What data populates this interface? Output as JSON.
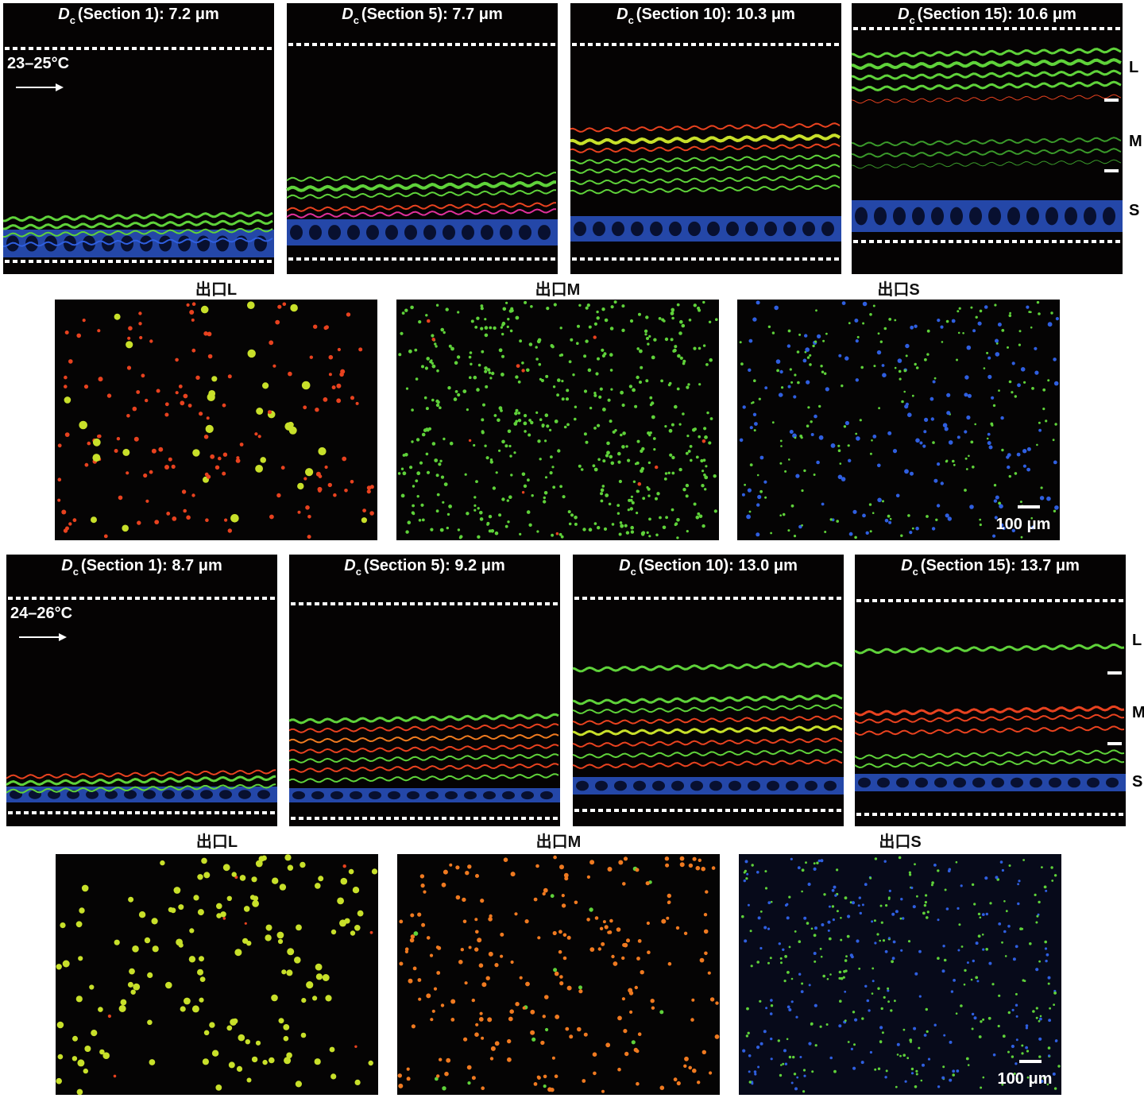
{
  "panels": [
    {
      "temperature": "23–25°C",
      "channels": [
        {
          "symbol": "D",
          "subscript": "c",
          "label": "(Section 1): 7.2 μm"
        },
        {
          "symbol": "D",
          "subscript": "c",
          "label": "(Section 5): 7.7 μm"
        },
        {
          "symbol": "D",
          "subscript": "c",
          "label": "(Section 10): 10.3 μm"
        },
        {
          "symbol": "D",
          "subscript": "c",
          "label": "(Section 15): 10.6 μm"
        }
      ],
      "lanes": [
        "L",
        "M",
        "S"
      ],
      "outlets": [
        "出口L",
        "出口M",
        "出口S"
      ],
      "scale_bar": "100 μm"
    },
    {
      "temperature": "24–26°C",
      "channels": [
        {
          "symbol": "D",
          "subscript": "c",
          "label": "(Section 1): 8.7 μm"
        },
        {
          "symbol": "D",
          "subscript": "c",
          "label": "(Section 5): 9.2 μm"
        },
        {
          "symbol": "D",
          "subscript": "c",
          "label": "(Section 10): 13.0 μm"
        },
        {
          "symbol": "D",
          "subscript": "c",
          "label": "(Section 15): 13.7 μm"
        }
      ],
      "lanes": [
        "L",
        "M",
        "S"
      ],
      "outlets": [
        "出口L",
        "出口M",
        "出口S"
      ],
      "scale_bar": "100 μm"
    }
  ]
}
